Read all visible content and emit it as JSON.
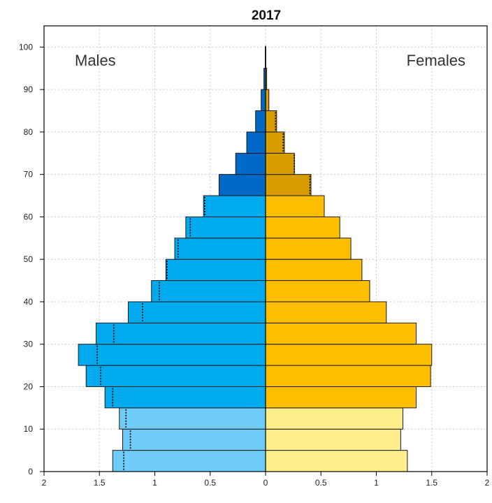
{
  "chart_data": {
    "type": "bar",
    "title": "2017",
    "orientation": "horizontal-population-pyramid",
    "labels": {
      "left": "Males",
      "right": "Females"
    },
    "xlim": [
      -2,
      2
    ],
    "ylim": [
      0,
      105
    ],
    "x_ticks": [
      {
        "value": -2,
        "label": "2"
      },
      {
        "value": -1.5,
        "label": "1.5"
      },
      {
        "value": -1,
        "label": "1"
      },
      {
        "value": -0.5,
        "label": "0.5"
      },
      {
        "value": 0,
        "label": "0"
      },
      {
        "value": 0.5,
        "label": "0.5"
      },
      {
        "value": 1,
        "label": "1"
      },
      {
        "value": 1.5,
        "label": "1.5"
      },
      {
        "value": 2,
        "label": "2"
      }
    ],
    "y_ticks": [
      0,
      10,
      20,
      30,
      40,
      50,
      60,
      70,
      80,
      90,
      100
    ],
    "grid": true,
    "age_groups": [
      {
        "start": 0,
        "end": 5,
        "male": 1.38,
        "female": 1.28,
        "male_ref": 1.28,
        "female_ref": null,
        "tone": "light"
      },
      {
        "start": 5,
        "end": 10,
        "male": 1.29,
        "female": 1.22,
        "male_ref": 1.22,
        "female_ref": null,
        "tone": "light"
      },
      {
        "start": 10,
        "end": 15,
        "male": 1.32,
        "female": 1.24,
        "male_ref": 1.26,
        "female_ref": null,
        "tone": "light"
      },
      {
        "start": 15,
        "end": 20,
        "male": 1.45,
        "female": 1.36,
        "male_ref": 1.38,
        "female_ref": null,
        "tone": "medium"
      },
      {
        "start": 20,
        "end": 25,
        "male": 1.62,
        "female": 1.49,
        "male_ref": 1.49,
        "female_ref": null,
        "tone": "medium"
      },
      {
        "start": 25,
        "end": 30,
        "male": 1.69,
        "female": 1.5,
        "male_ref": 1.52,
        "female_ref": null,
        "tone": "medium"
      },
      {
        "start": 30,
        "end": 35,
        "male": 1.53,
        "female": 1.36,
        "male_ref": 1.37,
        "female_ref": null,
        "tone": "medium"
      },
      {
        "start": 35,
        "end": 40,
        "male": 1.24,
        "female": 1.09,
        "male_ref": 1.11,
        "female_ref": null,
        "tone": "medium"
      },
      {
        "start": 40,
        "end": 45,
        "male": 1.03,
        "female": 0.94,
        "male_ref": 0.96,
        "female_ref": null,
        "tone": "medium"
      },
      {
        "start": 45,
        "end": 50,
        "male": 0.9,
        "female": 0.87,
        "male_ref": 0.89,
        "female_ref": null,
        "tone": "medium"
      },
      {
        "start": 50,
        "end": 55,
        "male": 0.82,
        "female": 0.77,
        "male_ref": 0.79,
        "female_ref": null,
        "tone": "medium"
      },
      {
        "start": 55,
        "end": 60,
        "male": 0.72,
        "female": 0.67,
        "male_ref": 0.68,
        "female_ref": null,
        "tone": "medium"
      },
      {
        "start": 60,
        "end": 65,
        "male": 0.56,
        "female": 0.53,
        "male_ref": 0.55,
        "female_ref": null,
        "tone": "medium"
      },
      {
        "start": 65,
        "end": 70,
        "male": 0.42,
        "female": 0.41,
        "male_ref": null,
        "female_ref": 0.4,
        "tone": "dark"
      },
      {
        "start": 70,
        "end": 75,
        "male": 0.27,
        "female": 0.26,
        "male_ref": null,
        "female_ref": 0.26,
        "tone": "dark"
      },
      {
        "start": 75,
        "end": 80,
        "male": 0.17,
        "female": 0.17,
        "male_ref": null,
        "female_ref": 0.16,
        "tone": "dark"
      },
      {
        "start": 80,
        "end": 85,
        "male": 0.09,
        "female": 0.1,
        "male_ref": null,
        "female_ref": 0.09,
        "tone": "dark"
      },
      {
        "start": 85,
        "end": 90,
        "male": 0.04,
        "female": 0.03,
        "male_ref": null,
        "female_ref": null,
        "tone": "dark"
      },
      {
        "start": 90,
        "end": 95,
        "male": 0.015,
        "female": 0.01,
        "male_ref": null,
        "female_ref": null,
        "tone": "dark"
      },
      {
        "start": 95,
        "end": 100,
        "male": 0.003,
        "female": 0.002,
        "male_ref": null,
        "female_ref": null,
        "tone": "dark"
      }
    ],
    "colors": {
      "male": {
        "light": "#6fcbf7",
        "medium": "#00aaef",
        "dark": "#0068c6"
      },
      "female": {
        "light": "#ffee8c",
        "medium": "#ffbf00",
        "dark": "#d69c00"
      },
      "bar_outline": "#1a1a1a",
      "grid": "#c8c8c8",
      "frame": "#000000"
    }
  }
}
